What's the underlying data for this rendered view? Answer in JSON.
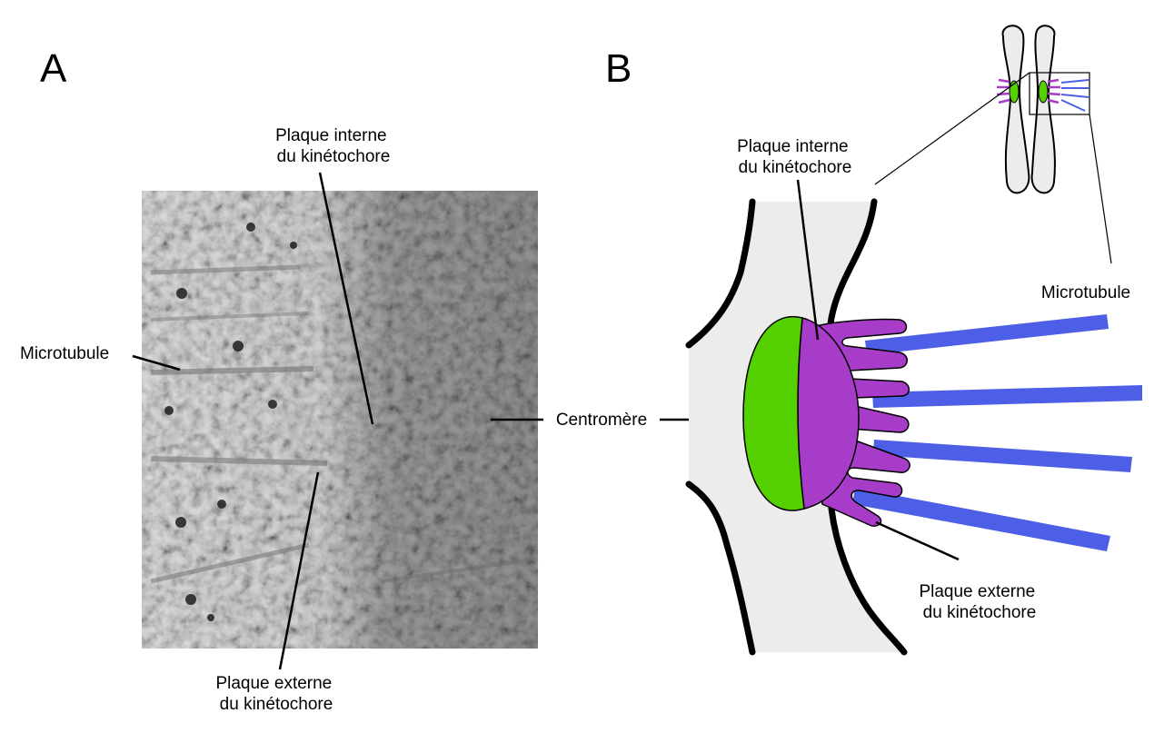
{
  "panel_a": {
    "letter": "A",
    "labels": {
      "inner_plate": [
        "Plaque interne",
        "du kinétochore"
      ],
      "microtubule": "Microtubule",
      "centromere": "Centromère",
      "outer_plate": [
        "Plaque externe",
        "du kinétochore"
      ]
    },
    "micrograph": "electron-tomography-kinetochore"
  },
  "panel_b": {
    "letter": "B",
    "labels": {
      "inner_plate": [
        "Plaque interne",
        "du kinétochore"
      ],
      "microtubule": "Microtubule",
      "outer_plate": [
        "Plaque externe",
        "du kinétochore"
      ]
    },
    "colors": {
      "centromere": "#55d000",
      "kinetochore": "#a63cc8",
      "microtubule": "#4d5fe6",
      "chromosome": "#ececec",
      "outline": "#000000"
    }
  }
}
